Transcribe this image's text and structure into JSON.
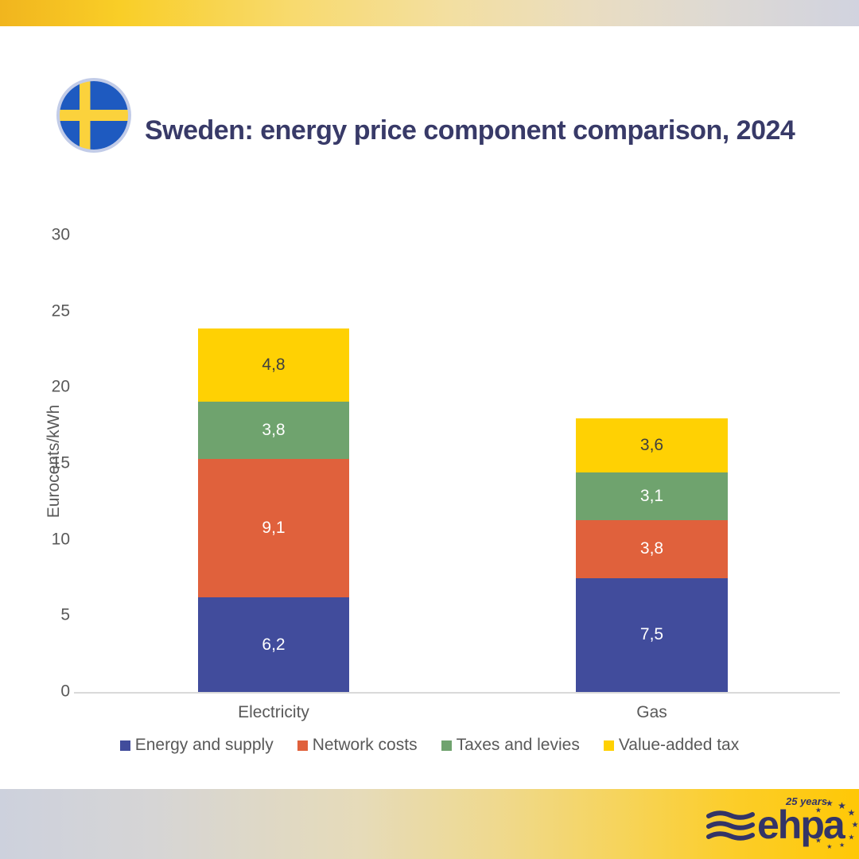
{
  "header": {
    "title": "Sweden: energy price component comparison, 2024",
    "flag_icon": "sweden-circular-flag"
  },
  "chart_data": {
    "type": "bar",
    "stacked": true,
    "title": "Sweden: energy price component comparison, 2024",
    "categories": [
      "Electricity",
      "Gas"
    ],
    "series": [
      {
        "name": "Energy and supply",
        "color": "#414C9C",
        "label_color": "#FFFFFF",
        "values": [
          6.2,
          7.5
        ],
        "labels": [
          "6,2",
          "7,5"
        ]
      },
      {
        "name": "Network costs",
        "color": "#E0613C",
        "label_color": "#FFFFFF",
        "values": [
          9.1,
          3.8
        ],
        "labels": [
          "9,1",
          "3,8"
        ]
      },
      {
        "name": "Taxes and levies",
        "color": "#6FA36E",
        "label_color": "#FFFFFF",
        "values": [
          3.8,
          3.1
        ],
        "labels": [
          "3,8",
          "3,1"
        ]
      },
      {
        "name": "Value-added tax",
        "color": "#FFD103",
        "label_color": "#3F3F3F",
        "values": [
          4.8,
          3.6
        ],
        "labels": [
          "4,8",
          "3,6"
        ]
      }
    ],
    "xlabel": "",
    "ylabel": "Eurocents/kWh",
    "ylim": [
      0,
      30
    ],
    "yticks": [
      0,
      5,
      10,
      15,
      20,
      25,
      30
    ],
    "grid": false,
    "legend_position": "bottom",
    "value_label_format": "comma-decimal"
  },
  "footer": {
    "logo": {
      "text": "ehpa",
      "badge": "25 years"
    }
  },
  "theme": {
    "title_color": "#383A68",
    "axis_text_color": "#595959",
    "axis_line_color": "#D9D9D9",
    "logo_navy": "#333467",
    "flag_blue": "#1E5AC0",
    "flag_yellow": "#FBD23C",
    "top_band_gradient": [
      "#F1B51E",
      "#D1D3DF"
    ],
    "bottom_band_gradient": [
      "#CDD1DD",
      "#FFC806"
    ]
  }
}
